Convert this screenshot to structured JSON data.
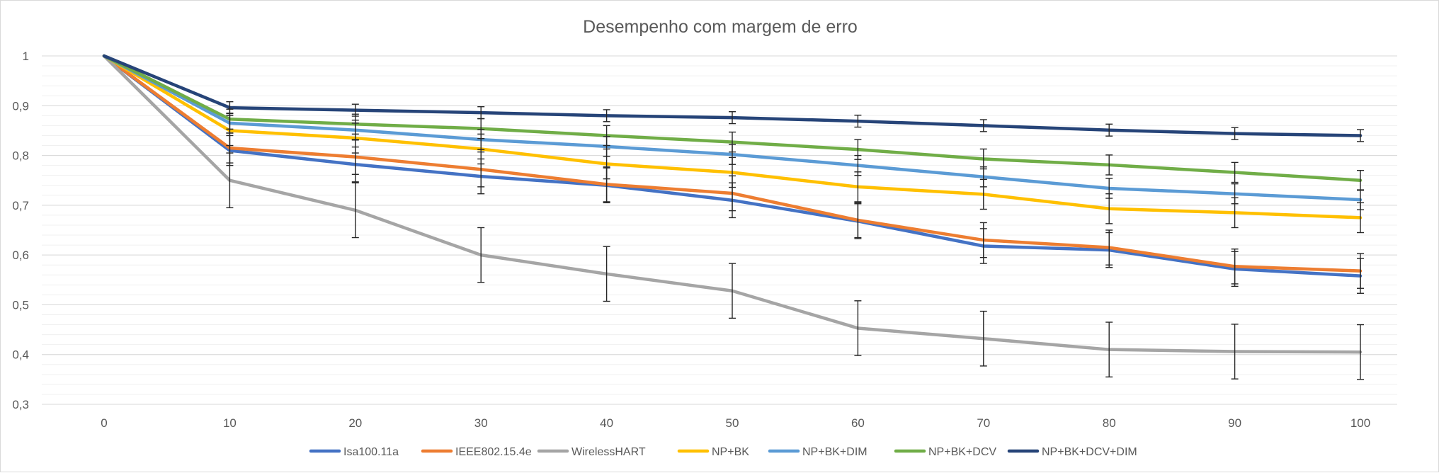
{
  "chart_data": {
    "type": "line",
    "title": "Desempenho com margem de erro",
    "xlabel": "",
    "ylabel": "",
    "x": [
      0,
      10,
      20,
      30,
      40,
      50,
      60,
      70,
      80,
      90,
      100
    ],
    "ylim": [
      0.3,
      1.0
    ],
    "yticks": [
      "0,3",
      "0,4",
      "0,5",
      "0,6",
      "0,7",
      "0,8",
      "0,9",
      "1"
    ],
    "ytick_values": [
      0.3,
      0.4,
      0.5,
      0.6,
      0.7,
      0.8,
      0.9,
      1.0
    ],
    "xticks": [
      "0",
      "10",
      "20",
      "30",
      "40",
      "50",
      "60",
      "70",
      "80",
      "90",
      "100"
    ],
    "grid": true,
    "legend_position": "bottom",
    "series": [
      {
        "name": "Isa100.11a",
        "color": "#4472C4",
        "values": [
          1.0,
          0.81,
          0.782,
          0.758,
          0.74,
          0.71,
          0.668,
          0.618,
          0.61,
          0.572,
          0.558
        ],
        "errors": [
          0,
          0.03,
          0.035,
          0.035,
          0.035,
          0.035,
          0.035,
          0.035,
          0.035,
          0.035,
          0.035
        ]
      },
      {
        "name": "IEEE802.15.4e",
        "color": "#ED7D31",
        "values": [
          1.0,
          0.815,
          0.797,
          0.772,
          0.742,
          0.724,
          0.67,
          0.63,
          0.615,
          0.577,
          0.568
        ],
        "errors": [
          0,
          0.03,
          0.035,
          0.035,
          0.035,
          0.035,
          0.035,
          0.035,
          0.035,
          0.035,
          0.035
        ]
      },
      {
        "name": "WirelessHART",
        "color": "#A5A5A5",
        "values": [
          1.0,
          0.75,
          0.69,
          0.6,
          0.562,
          0.528,
          0.453,
          0.432,
          0.41,
          0.406,
          0.405
        ],
        "errors": [
          0,
          0.055,
          0.055,
          0.055,
          0.055,
          0.055,
          0.055,
          0.055,
          0.055,
          0.055,
          0.055
        ]
      },
      {
        "name": "NP+BK",
        "color": "#FFC000",
        "values": [
          1.0,
          0.85,
          0.835,
          0.813,
          0.783,
          0.766,
          0.737,
          0.722,
          0.693,
          0.685,
          0.675
        ],
        "errors": [
          0,
          0.03,
          0.03,
          0.03,
          0.03,
          0.03,
          0.03,
          0.03,
          0.03,
          0.03,
          0.03
        ]
      },
      {
        "name": "NP+BK+DIM",
        "color": "#5B9BD5",
        "values": [
          1.0,
          0.865,
          0.851,
          0.832,
          0.818,
          0.802,
          0.78,
          0.757,
          0.734,
          0.723,
          0.711
        ],
        "errors": [
          0,
          0.02,
          0.02,
          0.02,
          0.02,
          0.02,
          0.02,
          0.02,
          0.02,
          0.02,
          0.02
        ]
      },
      {
        "name": "NP+BK+DCV",
        "color": "#70AD47",
        "values": [
          1.0,
          0.873,
          0.863,
          0.854,
          0.84,
          0.827,
          0.812,
          0.793,
          0.781,
          0.766,
          0.75
        ],
        "errors": [
          0,
          0.02,
          0.02,
          0.02,
          0.02,
          0.02,
          0.02,
          0.02,
          0.02,
          0.02,
          0.02
        ]
      },
      {
        "name": "NP+BK+DCV+DIM",
        "color": "#264478",
        "values": [
          1.0,
          0.896,
          0.891,
          0.886,
          0.88,
          0.876,
          0.869,
          0.86,
          0.851,
          0.844,
          0.84
        ],
        "errors": [
          0,
          0.012,
          0.012,
          0.012,
          0.012,
          0.012,
          0.012,
          0.012,
          0.012,
          0.012,
          0.012
        ]
      }
    ]
  }
}
